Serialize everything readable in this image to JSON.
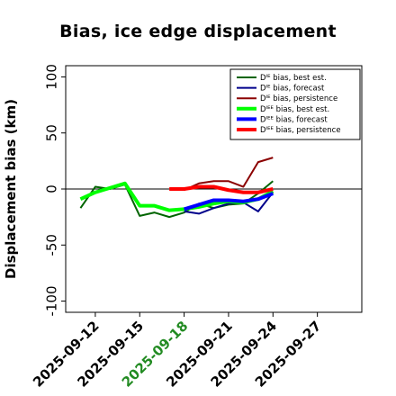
{
  "chart_data": {
    "type": "line",
    "title": "Bias, ice edge displacement",
    "xlabel": "",
    "ylabel": "Displacement bias (km)",
    "ylim": [
      -110,
      110
    ],
    "xlim": [
      "2025-09-10",
      "2025-09-30"
    ],
    "yticks": [
      100,
      50,
      0,
      -50,
      -100
    ],
    "xticks": [
      {
        "date": "2025-09-12",
        "label": "2025-09-12",
        "color": "#000000"
      },
      {
        "date": "2025-09-15",
        "label": "2025-09-15",
        "color": "#000000"
      },
      {
        "date": "2025-09-18",
        "label": "2025-09-18",
        "color": "#228B22"
      },
      {
        "date": "2025-09-21",
        "label": "2025-09-21",
        "color": "#000000"
      },
      {
        "date": "2025-09-24",
        "label": "2025-09-24",
        "color": "#000000"
      },
      {
        "date": "2025-09-27",
        "label": "2025-09-27",
        "color": "#000000"
      }
    ],
    "zero_line": true,
    "grid": false,
    "legend_position": "top-right",
    "series": [
      {
        "name": "Dᴵᴱ bias, best est.",
        "color": "#006400",
        "width": 2,
        "x": [
          "2025-09-11",
          "2025-09-12",
          "2025-09-13",
          "2025-09-14",
          "2025-09-15",
          "2025-09-16",
          "2025-09-17",
          "2025-09-18",
          "2025-09-19",
          "2025-09-20",
          "2025-09-21",
          "2025-09-22",
          "2025-09-23",
          "2025-09-24"
        ],
        "y": [
          -17,
          2,
          0,
          4,
          -24,
          -21,
          -25,
          -21,
          -13,
          -17,
          -14,
          -13,
          -4,
          7
        ]
      },
      {
        "name": "Dᴵᴱ bias, forecast",
        "color": "#00008B",
        "width": 2,
        "x": [
          "2025-09-18",
          "2025-09-19",
          "2025-09-20",
          "2025-09-21",
          "2025-09-22",
          "2025-09-23",
          "2025-09-24"
        ],
        "y": [
          -20,
          -22,
          -17,
          -13,
          -12,
          -20,
          -3
        ]
      },
      {
        "name": "Dᴵᴱ bias, persistence",
        "color": "#8B0000",
        "width": 2,
        "x": [
          "2025-09-18",
          "2025-09-19",
          "2025-09-20",
          "2025-09-21",
          "2025-09-22",
          "2025-09-23",
          "2025-09-24"
        ],
        "y": [
          -1,
          5,
          7,
          7,
          2,
          24,
          28
        ]
      },
      {
        "name": "Dᴵᴱᴱ bias, best est.",
        "color": "#00FF00",
        "width": 4,
        "x": [
          "2025-09-11",
          "2025-09-12",
          "2025-09-13",
          "2025-09-14",
          "2025-09-15",
          "2025-09-16",
          "2025-09-17",
          "2025-09-18",
          "2025-09-19",
          "2025-09-20",
          "2025-09-21",
          "2025-09-22",
          "2025-09-23",
          "2025-09-24"
        ],
        "y": [
          -9,
          -3,
          1,
          5,
          -15,
          -15,
          -19,
          -18,
          -16,
          -13,
          -11,
          -12,
          -9,
          -2
        ]
      },
      {
        "name": "Dᴵᴱᴱ bias, forecast",
        "color": "#0000FF",
        "width": 4,
        "x": [
          "2025-09-18",
          "2025-09-19",
          "2025-09-20",
          "2025-09-21",
          "2025-09-22",
          "2025-09-23",
          "2025-09-24"
        ],
        "y": [
          -18,
          -14,
          -10,
          -10,
          -11,
          -9,
          -4
        ]
      },
      {
        "name": "Dᴵᴱᴱ bias, persistence",
        "color": "#FF0000",
        "width": 4,
        "x": [
          "2025-09-17",
          "2025-09-18",
          "2025-09-19",
          "2025-09-20",
          "2025-09-21",
          "2025-09-22",
          "2025-09-23",
          "2025-09-24"
        ],
        "y": [
          0,
          0,
          2,
          2,
          -1,
          -3,
          -3,
          0
        ]
      }
    ]
  }
}
